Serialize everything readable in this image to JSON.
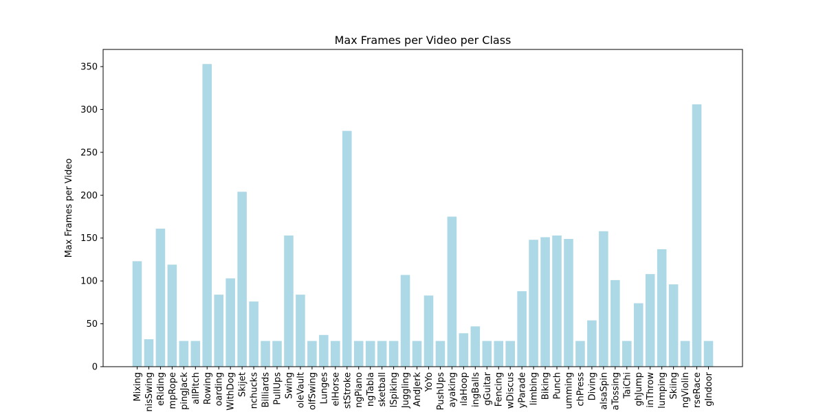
{
  "chart_data": {
    "type": "bar",
    "title": "Max Frames per Video per Class",
    "xlabel": "",
    "ylabel": "Max Frames per Video",
    "ylim": [
      0,
      370
    ],
    "yticks": [
      0,
      50,
      100,
      150,
      200,
      250,
      300,
      350
    ],
    "bar_color": "#add8e6",
    "grid": false,
    "categories": [
      "Mixing",
      "TennisSwing",
      "HorseRiding",
      "JumpRope",
      "JumpingJack",
      "BaseballPitch",
      "Rowing",
      "Skateboarding",
      "WalkingWithDog",
      "Skijet",
      "Nunchucks",
      "Billiards",
      "PullUps",
      "Swing",
      "PoleVault",
      "GolfSwing",
      "Lunges",
      "PommelHorse",
      "BreastStroke",
      "PlayingPiano",
      "PlayingTabla",
      "Basketball",
      "VolleyballSpiking",
      "Juggling",
      "CleanAndJerk",
      "YoYo",
      "PushUps",
      "Kayaking",
      "HulaHoop",
      "JugglingBalls",
      "PlayingGuitar",
      "Fencing",
      "ThrowDiscus",
      "MilitaryParade",
      "RopeClimbing",
      "Biking",
      "Punch",
      "Drumming",
      "BenchPress",
      "Diving",
      "SalsaSpin",
      "PizzaTossing",
      "TaiChi",
      "HighJump",
      "JavelinThrow",
      "TrampolineJumping",
      "Skiing",
      "PlayingViolin",
      "HorseRace",
      "RockClimbingIndoor"
    ],
    "tick_labels": [
      "Mixing",
      "nisSwing",
      "eRiding",
      "mpRope",
      "pingJack",
      "allPitch",
      "Rowing",
      "oarding",
      "WithDog",
      "Skijet",
      "nchucks",
      "Billiards",
      "PullUps",
      "Swing",
      "oleVault",
      "olfSwing",
      "Lunges",
      "elHorse",
      "stStroke",
      "ngPiano",
      "ngTabla",
      "sketball",
      "lSpiking",
      "Juggling",
      "AndJerk",
      "YoYo",
      "PushUps",
      "ayaking",
      "ılaHoop",
      "ingBalls",
      "gGuitar",
      "Fencing",
      "wDiscus",
      "yParade",
      "limbing",
      "Biking",
      "Punch",
      "umming",
      "chPress",
      "Diving",
      "alsaSpin",
      "aTossing",
      "TaiChi",
      "ghJump",
      "inThrow",
      "lumping",
      "Skiing",
      "ngViolin",
      "rseRace",
      "gIndoor"
    ],
    "values": [
      123,
      32,
      161,
      119,
      30,
      30,
      353,
      84,
      103,
      204,
      76,
      30,
      30,
      153,
      84,
      30,
      37,
      30,
      275,
      30,
      30,
      30,
      30,
      107,
      30,
      83,
      30,
      175,
      39,
      47,
      30,
      30,
      30,
      88,
      148,
      151,
      153,
      149,
      30,
      54,
      158,
      101,
      30,
      74,
      108,
      137,
      96,
      30,
      306,
      30
    ]
  }
}
